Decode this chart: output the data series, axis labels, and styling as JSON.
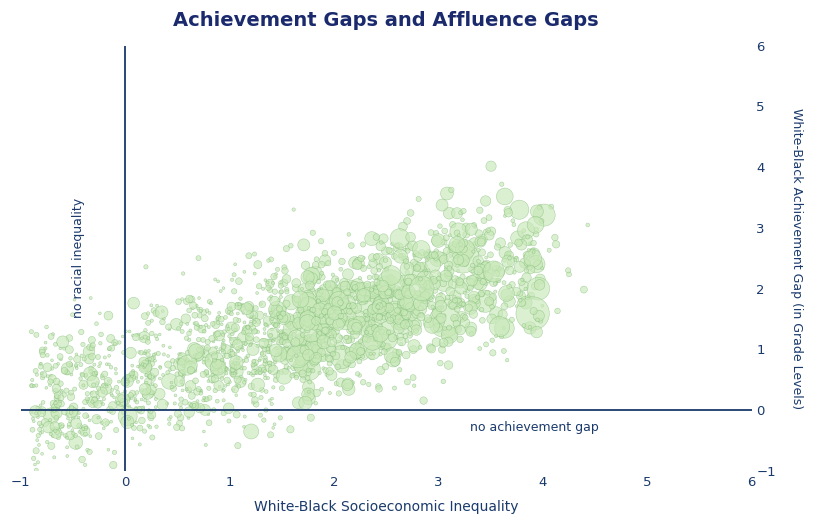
{
  "title": "Achievement Gaps and Affluence Gaps",
  "xlabel": "White-Black Socioeconomic Inequality",
  "ylabel_right": "White-Black Achievement Gap (in Grade Levels)",
  "annotation_x": "no racial inequality",
  "annotation_y": "no achievement gap",
  "xlim": [
    -1,
    6
  ],
  "ylim": [
    -1,
    6
  ],
  "xticks": [
    -1,
    0,
    1,
    2,
    3,
    4,
    5,
    6
  ],
  "yticks": [
    -1,
    0,
    1,
    2,
    3,
    4,
    5,
    6
  ],
  "vline_x": 0,
  "hline_y": 0,
  "bubble_face_color": "#c8e8b8",
  "bubble_edge_color": "#7ab870",
  "background_color": "#ffffff",
  "title_color": "#1a2a6c",
  "label_color": "#1a3a6c",
  "annotation_color": "#1a3a6c",
  "refline_color": "#1a3a6c",
  "seed": 42,
  "n_points": 2000
}
